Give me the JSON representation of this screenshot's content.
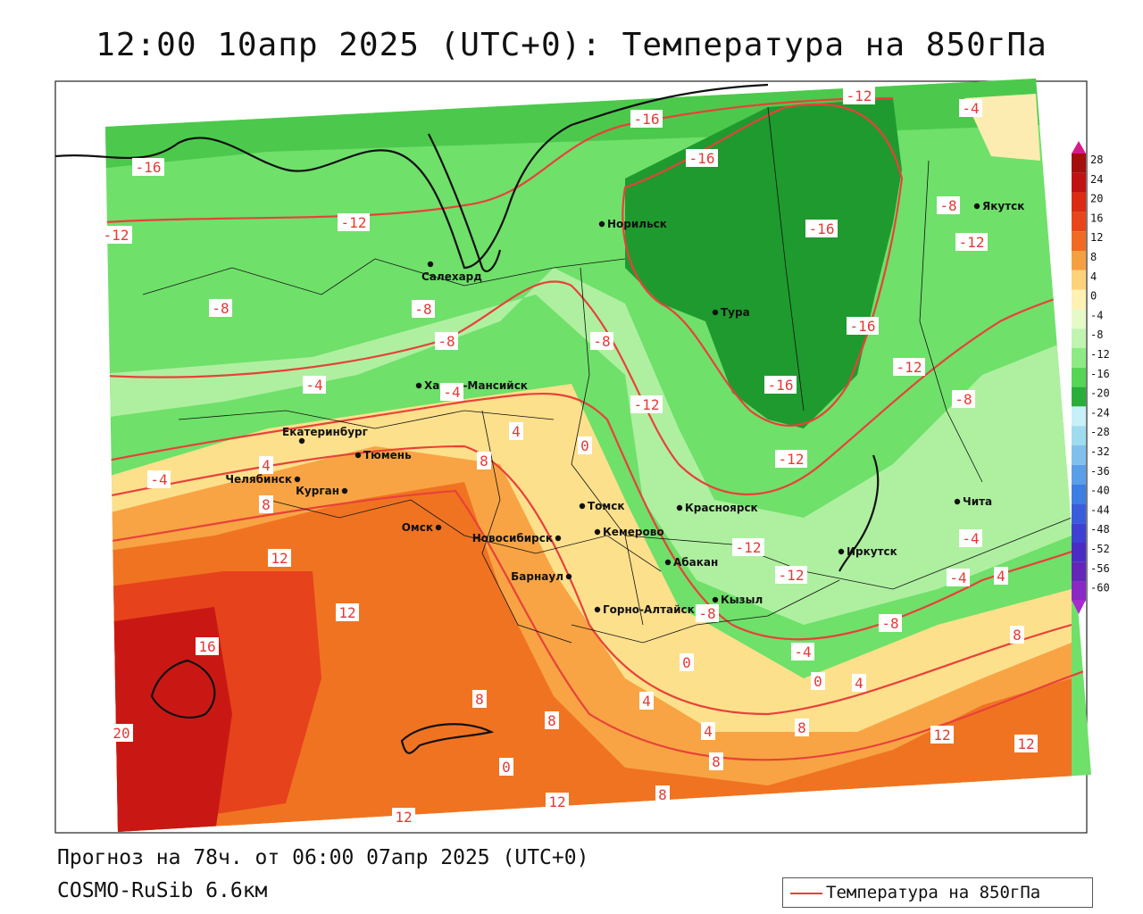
{
  "header": {
    "title": "12:00 10апр 2025 (UTC+0): Температура на 850гПа"
  },
  "footer": {
    "forecast": "Прогноз на 78ч. от 06:00 07апр 2025 (UTC+0)",
    "model": "COSMO-RuSib 6.6км"
  },
  "legend": {
    "label": "Температура на 850гПа",
    "line_color": "#e8413a"
  },
  "colorbar": {
    "ticks": [
      "28",
      "24",
      "20",
      "16",
      "12",
      "8",
      "4",
      "0",
      "-4",
      "-8",
      "-12",
      "-16",
      "-20",
      "-24",
      "-28",
      "-32",
      "-36",
      "-40",
      "-44",
      "-48",
      "-52",
      "-56",
      "-60"
    ],
    "colors": [
      "#a40e0e",
      "#c01212",
      "#db2b12",
      "#e8461a",
      "#f06a22",
      "#f5a040",
      "#fcd27a",
      "#fff0b4",
      "#e6fac8",
      "#bff5b0",
      "#8eeb84",
      "#55d655",
      "#2aae3a",
      "#c8f0f8",
      "#a0dcf0",
      "#80c0ec",
      "#5a9ee8",
      "#3c7ee4",
      "#3a5cdc",
      "#3e40d2",
      "#4a2cc4",
      "#6426b8",
      "#8a28c6"
    ]
  },
  "cities": [
    {
      "name": "Норильск"
    },
    {
      "name": "Салехард"
    },
    {
      "name": "Тура"
    },
    {
      "name": "Якутск"
    },
    {
      "name": "Ханты-Мансийск"
    },
    {
      "name": "Екатеринбург"
    },
    {
      "name": "Тюмень"
    },
    {
      "name": "Челябинск"
    },
    {
      "name": "Курган"
    },
    {
      "name": "Омск"
    },
    {
      "name": "Новосибирск"
    },
    {
      "name": "Томск"
    },
    {
      "name": "Кемерово"
    },
    {
      "name": "Красноярск"
    },
    {
      "name": "Барнаул"
    },
    {
      "name": "Абакан"
    },
    {
      "name": "Иркутск"
    },
    {
      "name": "Кызыл"
    },
    {
      "name": "Горно-Алтайск"
    },
    {
      "name": "Чита"
    }
  ],
  "isotherm_labels": [
    "-16",
    "-12",
    "-12",
    "-16",
    "-16",
    "-12",
    "-4",
    "-12",
    "-16",
    "-8",
    "-12",
    "-16",
    "-8",
    "-8",
    "-8",
    "-8",
    "-4",
    "-16",
    "-12",
    "-8",
    "-4",
    "-12",
    "0",
    "4",
    "8",
    "-4",
    "4",
    "8",
    "12",
    "12",
    "16",
    "20",
    "8",
    "8",
    "12",
    "12",
    "8",
    "4",
    "8",
    "4",
    "0",
    "-8",
    "-4",
    "-12",
    "-8",
    "-12",
    "-4",
    "0",
    "-4",
    "4",
    "8",
    "12",
    "12",
    "0",
    "4",
    "8"
  ]
}
